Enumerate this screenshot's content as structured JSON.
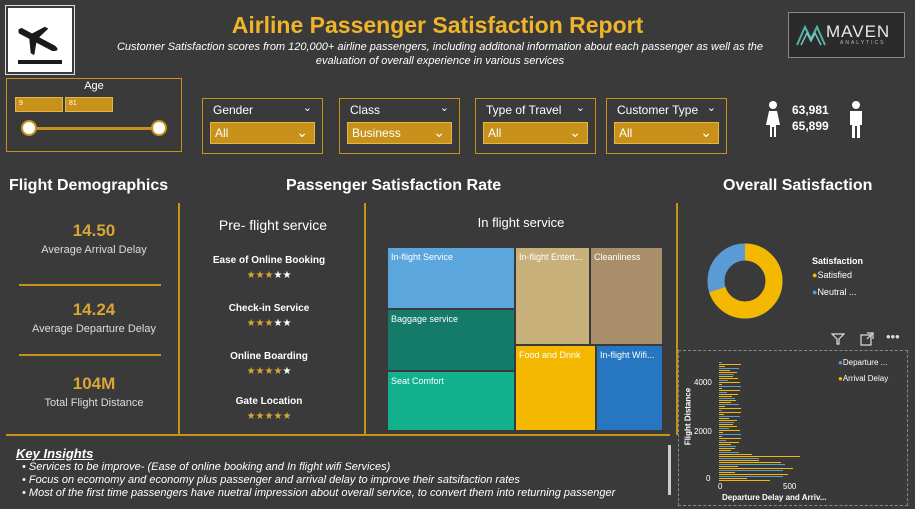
{
  "header": {
    "title": "Airline Passenger Satisfaction Report",
    "subtitle_line1": "Customer Satisfaction scores from 120,000+ airline passengers, including additonal information about each passenger as well as the",
    "subtitle_line2": "evaluation of overall experience in various services",
    "brand_name": "MAVEN",
    "brand_sub": "ANALYTICS"
  },
  "filters": {
    "age": {
      "label": "Age",
      "min": "9",
      "max": "81"
    },
    "gender": {
      "label": "Gender",
      "value": "All"
    },
    "class": {
      "label": "Class",
      "value": "Business"
    },
    "travel": {
      "label": "Type of Travel",
      "value": "All"
    },
    "customer": {
      "label": "Customer Type",
      "value": "All"
    }
  },
  "counts": {
    "female": "63,981",
    "male": "65,899"
  },
  "demographics": {
    "heading": "Flight Demographics",
    "arrival_value": "14.50",
    "arrival_label": "Average Arrival Delay",
    "departure_value": "14.24",
    "departure_label": "Average Departure Delay",
    "distance_value": "104M",
    "distance_label": "Total Flight Distance"
  },
  "satisfaction_rate": {
    "heading": "Passenger Satisfaction Rate",
    "pre_flight_title": "Pre- flight service",
    "pre_flight": [
      {
        "name": "Ease of Online Booking",
        "stars": 3
      },
      {
        "name": "Check-in Service",
        "stars": 3
      },
      {
        "name": "Online Boarding",
        "stars": 4
      },
      {
        "name": "Gate Location",
        "stars": 5
      }
    ],
    "in_flight_title": "In flight service",
    "tiles": {
      "inflight_service": "In-flight Service",
      "entertainment": "In-flight Entert...",
      "cleanliness": "Cleanliness",
      "baggage": "Baggage service",
      "seat": "Seat Comfort",
      "food": "Food and Drink",
      "wifi": "In-flight Wifi..."
    }
  },
  "overall": {
    "heading": "Overall Satisfaction",
    "legend_title": "Satisfaction",
    "legend": [
      "Satisfied",
      "Neutral ..."
    ],
    "colors": {
      "satisfied": "#f5b800",
      "neutral": "#5b9bd5"
    },
    "satisfied_fraction": 0.7
  },
  "scatter": {
    "legend": [
      "Departure ...",
      "Arrival Delay"
    ],
    "y_label": "Flight Distance",
    "x_label": "Departure Delay and Arriv...",
    "y_ticks": [
      "4000",
      "2000",
      "0"
    ],
    "x_ticks": [
      "0",
      "500"
    ]
  },
  "insights": {
    "title": "Key Insights",
    "lines": [
      "• Services to be improve- (Ease of online booking and In flight wifi  Services)",
      "• Focus on ecomomy and economy plus passenger and arrival delay  to improve their satsifaction rates",
      "• Most of the first time passengers have nuetral impression about overall service, to convert them into returning passenger"
    ]
  }
}
